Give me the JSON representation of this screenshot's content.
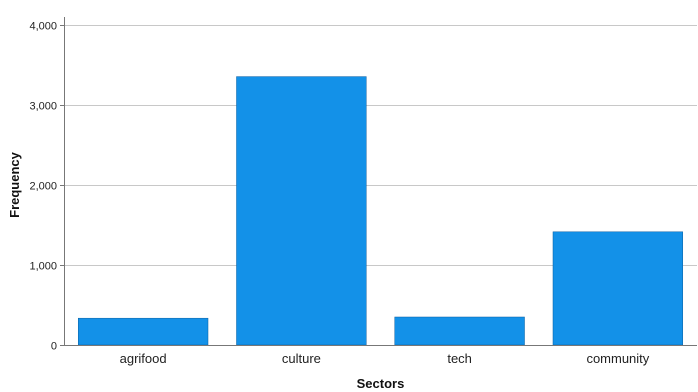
{
  "chart_data": {
    "type": "bar",
    "categories": [
      "agrifood",
      "culture",
      "tech",
      "community"
    ],
    "values": [
      335,
      3355,
      350,
      1415
    ],
    "title": "",
    "xlabel": "Sectors",
    "ylabel": "Frequency",
    "ylim": [
      0,
      4000
    ],
    "yticks": [
      0,
      1000,
      2000,
      3000,
      4000
    ],
    "ytick_labels": [
      "0",
      "1,000",
      "2,000",
      "3,000",
      "4,000"
    ],
    "grid": true,
    "bar_color": "#1391e8",
    "bar_edge_color": "#0a5fa0"
  }
}
